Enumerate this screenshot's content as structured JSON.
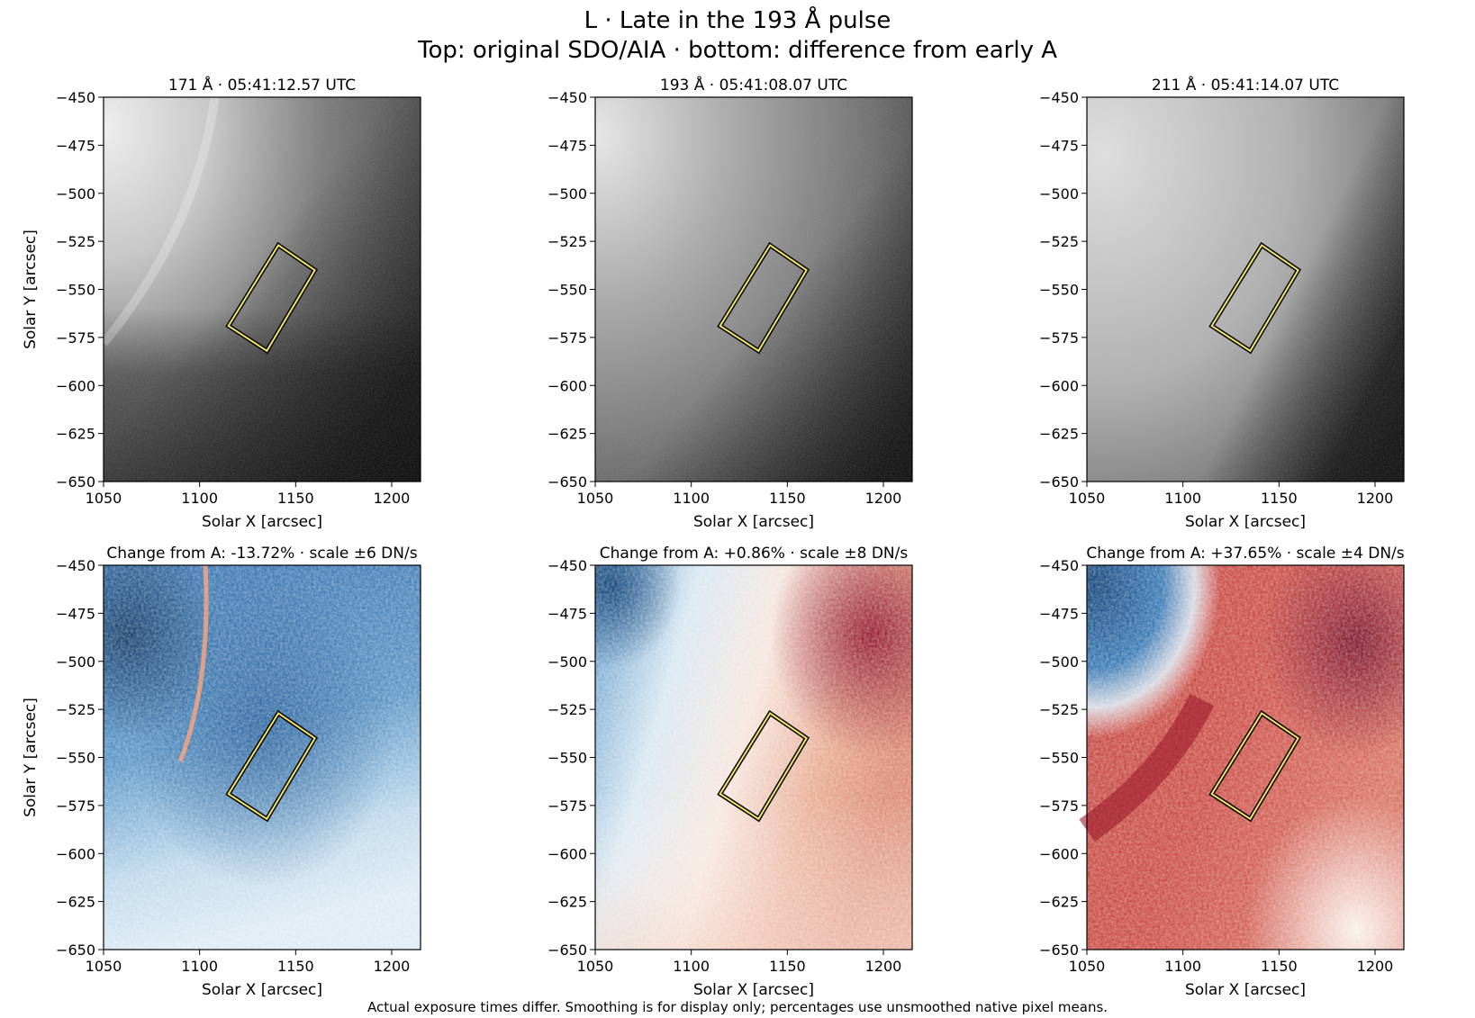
{
  "figure": {
    "title_line1": "L · Late in the 193 Å pulse",
    "title_line2": "Top: original SDO/AIA · bottom: difference from early A",
    "footnote": "Actual exposure times differ. Smoothing is for display only; percentages use unsmoothed native pixel means."
  },
  "chart_data": [
    {
      "type": "heatmap",
      "panel": "top-171",
      "row": "top",
      "col": 0,
      "title": "171 Å · 05:41:12.57 UTC",
      "xlabel": "Solar X [arcsec]",
      "ylabel": "Solar Y [arcsec]",
      "xlim": [
        1050,
        1215
      ],
      "ylim": [
        -650,
        -450
      ],
      "colormap": "gray",
      "roi_box": [
        [
          1141,
          -527
        ],
        [
          1160,
          -540
        ],
        [
          1135,
          -582
        ],
        [
          1115,
          -569
        ]
      ]
    },
    {
      "type": "heatmap",
      "panel": "top-193",
      "row": "top",
      "col": 1,
      "title": "193 Å · 05:41:08.07 UTC",
      "xlabel": "Solar X [arcsec]",
      "ylabel": "",
      "xlim": [
        1050,
        1215
      ],
      "ylim": [
        -650,
        -450
      ],
      "colormap": "gray",
      "roi_box": [
        [
          1141,
          -527
        ],
        [
          1160,
          -540
        ],
        [
          1135,
          -582
        ],
        [
          1115,
          -569
        ]
      ]
    },
    {
      "type": "heatmap",
      "panel": "top-211",
      "row": "top",
      "col": 2,
      "title": "211 Å · 05:41:14.07 UTC",
      "xlabel": "Solar X [arcsec]",
      "ylabel": "",
      "xlim": [
        1050,
        1215
      ],
      "ylim": [
        -650,
        -450
      ],
      "colormap": "gray",
      "roi_box": [
        [
          1141,
          -527
        ],
        [
          1160,
          -540
        ],
        [
          1135,
          -582
        ],
        [
          1115,
          -569
        ]
      ]
    },
    {
      "type": "heatmap",
      "panel": "diff-171",
      "row": "bottom",
      "col": 0,
      "title": "Change from A: -13.72% · scale ±6 DN/s",
      "xlabel": "Solar X [arcsec]",
      "ylabel": "Solar Y [arcsec]",
      "xlim": [
        1050,
        1215
      ],
      "ylim": [
        -650,
        -450
      ],
      "colormap": "RdBu_r",
      "scale_dn_s": 6,
      "change_pct": -13.72,
      "roi_box": [
        [
          1141,
          -527
        ],
        [
          1160,
          -540
        ],
        [
          1135,
          -582
        ],
        [
          1115,
          -569
        ]
      ]
    },
    {
      "type": "heatmap",
      "panel": "diff-193",
      "row": "bottom",
      "col": 1,
      "title": "Change from A: +0.86% · scale ±8 DN/s",
      "xlabel": "Solar X [arcsec]",
      "ylabel": "",
      "xlim": [
        1050,
        1215
      ],
      "ylim": [
        -650,
        -450
      ],
      "colormap": "RdBu_r",
      "scale_dn_s": 8,
      "change_pct": 0.86,
      "roi_box": [
        [
          1141,
          -527
        ],
        [
          1160,
          -540
        ],
        [
          1135,
          -582
        ],
        [
          1115,
          -569
        ]
      ]
    },
    {
      "type": "heatmap",
      "panel": "diff-211",
      "row": "bottom",
      "col": 2,
      "title": "Change from A: +37.65% · scale ±4 DN/s",
      "xlabel": "Solar X [arcsec]",
      "ylabel": "",
      "xlim": [
        1050,
        1215
      ],
      "ylim": [
        -650,
        -450
      ],
      "colormap": "RdBu_r",
      "scale_dn_s": 4,
      "change_pct": 37.65,
      "roi_box": [
        [
          1141,
          -527
        ],
        [
          1160,
          -540
        ],
        [
          1135,
          -582
        ],
        [
          1115,
          -569
        ]
      ]
    }
  ],
  "axes": {
    "xticks": [
      1050,
      1100,
      1150,
      1200
    ],
    "xtick_labels": [
      "1050",
      "1100",
      "1150",
      "1200"
    ],
    "yticks": [
      -450,
      -475,
      -500,
      -525,
      -550,
      -575,
      -600,
      -625,
      -650
    ],
    "ytick_labels": [
      "−450",
      "−475",
      "−500",
      "−525",
      "−550",
      "−575",
      "−600",
      "−625",
      "−650"
    ]
  },
  "colors": {
    "roi_outer": "#000000",
    "roi_inner": "#f5e663",
    "diverging_blue": "#053061",
    "diverging_white": "#f7f7f7",
    "diverging_red": "#67001f"
  }
}
